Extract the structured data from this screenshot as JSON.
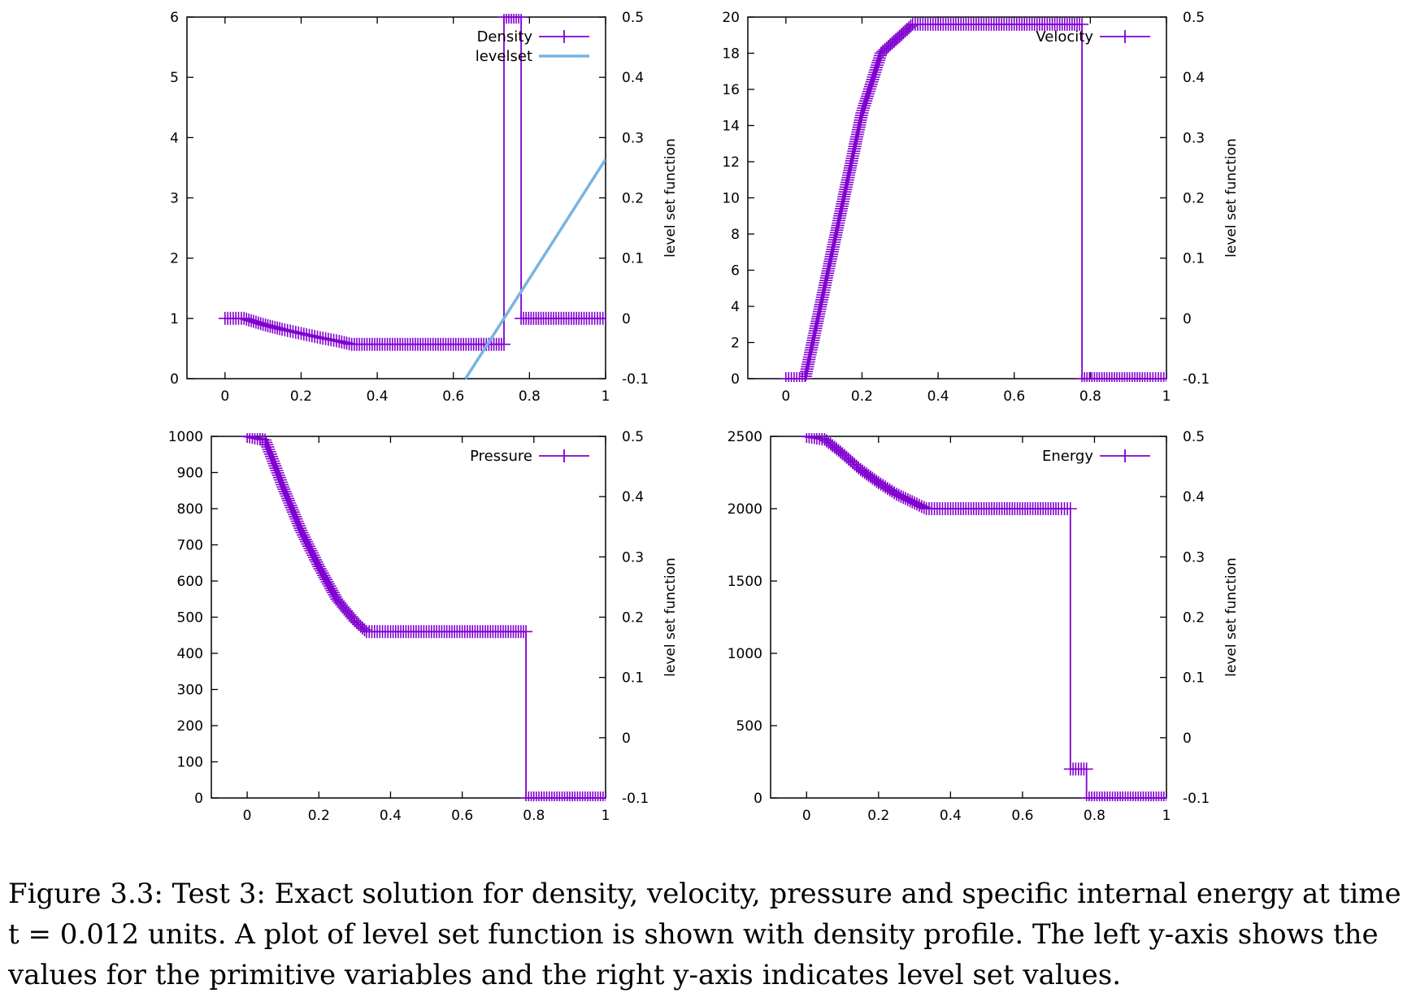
{
  "caption": "Figure 3.3: Test 3: Exact solution for density, velocity, pressure and specific internal energy at time t = 0.012 units. A plot of level set function is shown with density profile. The left y-axis shows the values for the primitive variables and the right y-axis indicates level set values.",
  "colors": {
    "primary": "#8000d0",
    "levelset": "#78b4e2",
    "axis": "#000000"
  },
  "chart_data": [
    {
      "id": "density",
      "type": "line",
      "xlim": [
        -0.1,
        1.0
      ],
      "ylim": [
        0,
        6
      ],
      "y2lim": [
        -0.1,
        0.5
      ],
      "xticks": [
        "0",
        "0.2",
        "0.4",
        "0.6",
        "0.8",
        "1"
      ],
      "yticks": [
        "0",
        "1",
        "2",
        "3",
        "4",
        "5",
        "6"
      ],
      "y2ticks": [
        "-0.1",
        "0",
        "0.1",
        "0.2",
        "0.3",
        "0.4",
        "0.5"
      ],
      "y2label": "level set function",
      "legend_position": "top-right",
      "series": [
        {
          "name": "Density",
          "marker": "plus",
          "color": "#8000d0",
          "axis": "y",
          "points": [
            [
              0,
              1.0
            ],
            [
              0.05,
              1.0
            ],
            [
              0.1,
              0.9
            ],
            [
              0.15,
              0.82
            ],
            [
              0.2,
              0.75
            ],
            [
              0.25,
              0.68
            ],
            [
              0.3,
              0.62
            ],
            [
              0.333,
              0.57
            ],
            [
              0.4,
              0.57
            ],
            [
              0.5,
              0.57
            ],
            [
              0.6,
              0.57
            ],
            [
              0.7,
              0.57
            ],
            [
              0.733,
              0.57
            ],
            [
              0.733,
              6.0
            ],
            [
              0.778,
              6.0
            ],
            [
              0.778,
              1.0
            ],
            [
              0.85,
              1.0
            ],
            [
              0.95,
              1.0
            ],
            [
              1.0,
              1.0
            ]
          ]
        },
        {
          "name": "levelset",
          "marker": "none",
          "color": "#78b4e2",
          "axis": "y2",
          "points": [
            [
              0.632,
              -0.1
            ],
            [
              1.0,
              0.264
            ]
          ]
        }
      ]
    },
    {
      "id": "velocity",
      "type": "line",
      "xlim": [
        -0.1,
        1.0
      ],
      "ylim": [
        0,
        20
      ],
      "y2lim": [
        -0.1,
        0.5
      ],
      "xticks": [
        "0",
        "0.2",
        "0.4",
        "0.6",
        "0.8",
        "1"
      ],
      "yticks": [
        "0",
        "2",
        "4",
        "6",
        "8",
        "10",
        "12",
        "14",
        "16",
        "18",
        "20"
      ],
      "y2ticks": [
        "-0.1",
        "0",
        "0.1",
        "0.2",
        "0.3",
        "0.4",
        "0.5"
      ],
      "y2label": "level set function",
      "legend_position": "top-right",
      "series": [
        {
          "name": "Velocity",
          "marker": "plus",
          "color": "#8000d0",
          "axis": "y",
          "points": [
            [
              0,
              0
            ],
            [
              0.05,
              0
            ],
            [
              0.1,
              4.9
            ],
            [
              0.15,
              9.8
            ],
            [
              0.2,
              14.7
            ],
            [
              0.25,
              18.0
            ],
            [
              0.333,
              19.6
            ],
            [
              0.4,
              19.6
            ],
            [
              0.5,
              19.6
            ],
            [
              0.6,
              19.6
            ],
            [
              0.7,
              19.6
            ],
            [
              0.778,
              19.6
            ],
            [
              0.778,
              0
            ],
            [
              0.85,
              0
            ],
            [
              0.95,
              0
            ],
            [
              1.0,
              0
            ]
          ]
        }
      ]
    },
    {
      "id": "pressure",
      "type": "line",
      "xlim": [
        -0.1,
        1.0
      ],
      "ylim": [
        0,
        1000
      ],
      "y2lim": [
        -0.1,
        0.5
      ],
      "xticks": [
        "0",
        "0.2",
        "0.4",
        "0.6",
        "0.8",
        "1"
      ],
      "yticks": [
        "0",
        "100",
        "200",
        "300",
        "400",
        "500",
        "600",
        "700",
        "800",
        "900",
        "1000"
      ],
      "y2ticks": [
        "-0.1",
        "0",
        "0.1",
        "0.2",
        "0.3",
        "0.4",
        "0.5"
      ],
      "y2label": "level set function",
      "legend_position": "top-right",
      "series": [
        {
          "name": "Pressure",
          "marker": "plus",
          "color": "#8000d0",
          "axis": "y",
          "points": [
            [
              0,
              1000
            ],
            [
              0.05,
              990
            ],
            [
              0.1,
              860
            ],
            [
              0.15,
              740
            ],
            [
              0.2,
              640
            ],
            [
              0.25,
              550
            ],
            [
              0.3,
              490
            ],
            [
              0.333,
              460
            ],
            [
              0.4,
              460
            ],
            [
              0.5,
              460
            ],
            [
              0.6,
              460
            ],
            [
              0.7,
              460
            ],
            [
              0.778,
              460
            ],
            [
              0.778,
              0
            ],
            [
              0.85,
              0
            ],
            [
              0.95,
              0
            ],
            [
              1.0,
              0
            ]
          ]
        }
      ]
    },
    {
      "id": "energy",
      "type": "line",
      "xlim": [
        -0.1,
        1.0
      ],
      "ylim": [
        0,
        2500
      ],
      "y2lim": [
        -0.1,
        0.5
      ],
      "xticks": [
        "0",
        "0.2",
        "0.4",
        "0.6",
        "0.8",
        "1"
      ],
      "yticks": [
        "0",
        "500",
        "1000",
        "1500",
        "2000",
        "2500"
      ],
      "y2ticks": [
        "-0.1",
        "0",
        "0.1",
        "0.2",
        "0.3",
        "0.4",
        "0.5"
      ],
      "y2label": "level set function",
      "legend_position": "top-right",
      "series": [
        {
          "name": "Energy",
          "marker": "plus",
          "color": "#8000d0",
          "axis": "y",
          "points": [
            [
              0,
              2500
            ],
            [
              0.05,
              2480
            ],
            [
              0.1,
              2380
            ],
            [
              0.15,
              2270
            ],
            [
              0.2,
              2180
            ],
            [
              0.25,
              2100
            ],
            [
              0.3,
              2040
            ],
            [
              0.333,
              2000
            ],
            [
              0.4,
              2000
            ],
            [
              0.5,
              2000
            ],
            [
              0.6,
              2000
            ],
            [
              0.7,
              2000
            ],
            [
              0.733,
              2000
            ],
            [
              0.733,
              200
            ],
            [
              0.778,
              200
            ],
            [
              0.778,
              0
            ],
            [
              0.85,
              0
            ],
            [
              0.95,
              0
            ],
            [
              1.0,
              0
            ]
          ]
        }
      ]
    }
  ]
}
